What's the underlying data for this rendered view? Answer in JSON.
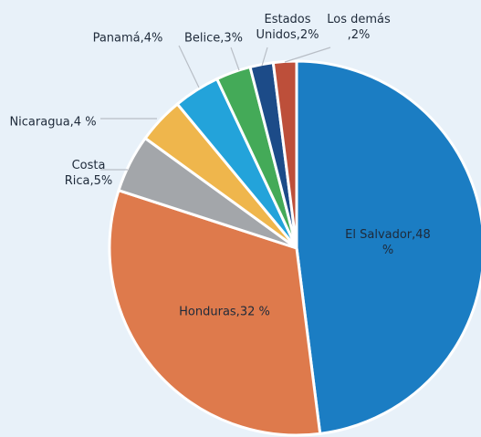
{
  "chart_data": {
    "type": "pie",
    "values": [
      48,
      32,
      5,
      4,
      4,
      3,
      2,
      2
    ],
    "value_labels": [
      "El Salvador,48 %",
      "Honduras,32 %",
      "Costa Rica,5%",
      "Nicaragua,4 %",
      "Panamá,4%",
      "Belice,3%",
      "Estados Unidos,2%",
      "Los demás ,2%"
    ],
    "colors": [
      "#1b7dc3",
      "#de7a4c",
      "#a3a6aa",
      "#efb64c",
      "#23a3da",
      "#44aa58",
      "#1c4b88",
      "#bd4f3a"
    ]
  }
}
